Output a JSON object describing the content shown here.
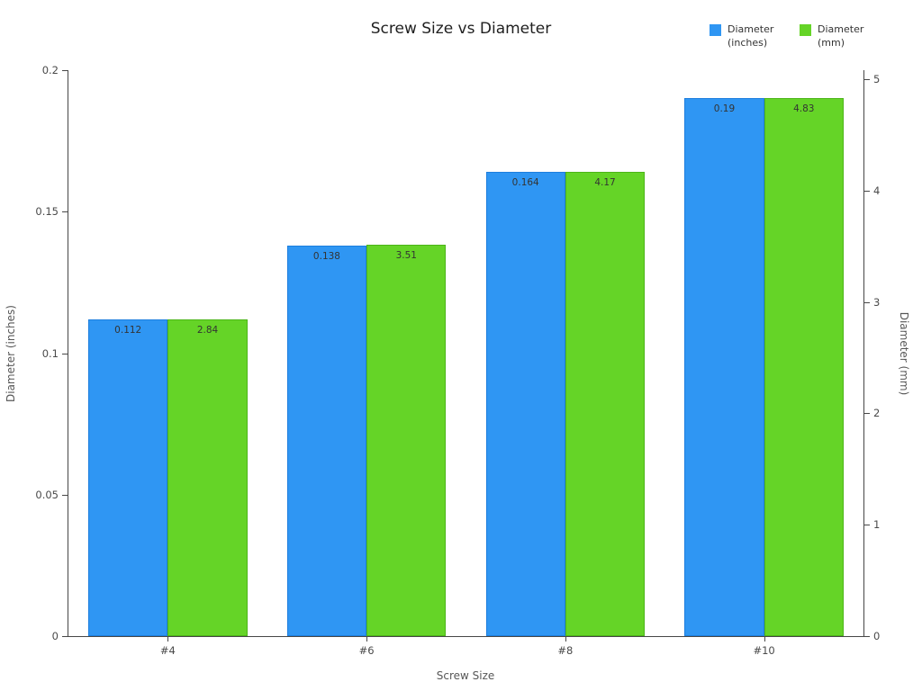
{
  "chart_data": {
    "type": "bar",
    "title": "Screw Size vs Diameter",
    "xlabel": "Screw Size",
    "categories": [
      "#4",
      "#6",
      "#8",
      "#10"
    ],
    "left_axis": {
      "label": "Diameter (inches)",
      "ticks": [
        0,
        0.05,
        0.1,
        0.15,
        0.2
      ],
      "max": 0.2
    },
    "right_axis": {
      "label": "Diameter (mm)",
      "ticks": [
        0,
        1,
        2,
        3,
        4,
        5
      ],
      "max": 5,
      "per_inch": 25.4
    },
    "series": [
      {
        "name": "Diameter (inches)",
        "axis": "left",
        "color": "#2f96f3",
        "border": "#1d7ede",
        "values": [
          0.112,
          0.138,
          0.164,
          0.19
        ]
      },
      {
        "name": "Diameter (mm)",
        "axis": "right",
        "color": "#65d427",
        "border": "#4cb518",
        "values": [
          2.84,
          3.51,
          4.17,
          4.83
        ]
      }
    ],
    "legend_position": "top-right",
    "grid": false
  }
}
